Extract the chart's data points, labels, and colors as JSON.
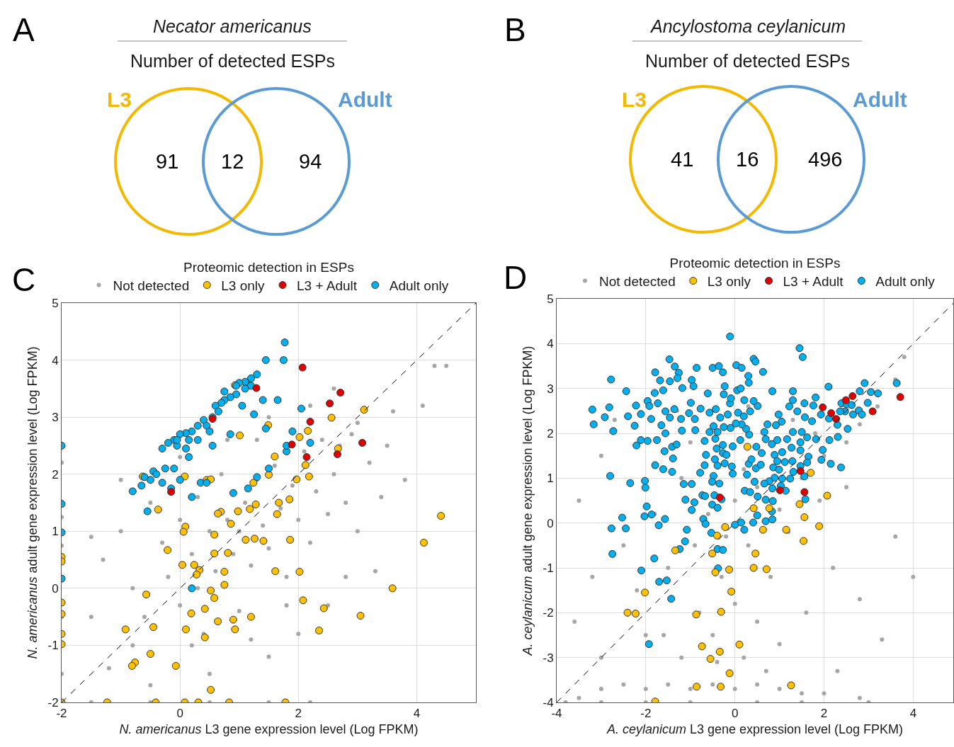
{
  "chart_data": [
    {
      "type": "other",
      "title": "Necator americanus",
      "subtitle": "Number of detected ESPs",
      "categories": [
        "L3",
        null,
        "Adult"
      ],
      "values": [
        91,
        12,
        94
      ],
      "data_labels": true,
      "colors": [
        "#f5b800",
        null,
        "#5b9bd5"
      ],
      "annotations": [
        "A"
      ]
    },
    {
      "type": "other",
      "title": "Ancylostoma ceylanicum",
      "subtitle": "Number of detected ESPs",
      "categories": [
        "L3",
        null,
        "Adult"
      ],
      "values": [
        41,
        16,
        496
      ],
      "data_labels": true,
      "colors": [
        "#f5b800",
        null,
        "#5b9bd5"
      ],
      "annotations": [
        "B"
      ]
    },
    {
      "type": "scatter",
      "legend_title": "Proteomic detection in ESPs",
      "xlabel": "N. americanus L3 gene expression level (Log FPKM)",
      "ylabel": "N. americanus adult gene expression level (Log FPKM)",
      "xlim": [
        -2,
        5
      ],
      "ylim": [
        -2,
        5
      ],
      "xticks": [
        -2,
        0,
        2,
        4
      ],
      "yticks": [
        -2,
        -1,
        0,
        1,
        2,
        3,
        4,
        5
      ],
      "grid": true,
      "legend": "top",
      "marker": "circle",
      "annotations": [
        "C"
      ],
      "series": [
        {
          "name": "Not detected",
          "color": "#a6a6a6",
          "x": [
            -1.3,
            -1.0,
            -0.8,
            -0.6,
            -0.5,
            -0.3,
            -0.2,
            0,
            0,
            0.2,
            0.3,
            0.4,
            0.5,
            0.6,
            0.7,
            0.8,
            0.9,
            1.0,
            1.0,
            1.1,
            1.2,
            1.3,
            1.4,
            1.5,
            1.6,
            1.7,
            1.8,
            1.9,
            2.0,
            2.1,
            2.2,
            2.3,
            2.4,
            2.5,
            2.6,
            2.8,
            2.9,
            3.0,
            3.2,
            3.4,
            3.6,
            3.8,
            4.1,
            4.3,
            4.5,
            2.8,
            3.3,
            2.0,
            1.5,
            0.5,
            -0.5,
            -1.2,
            -1.5,
            -1.5,
            -1.0,
            0.0,
            -0.8,
            0.2,
            1.2,
            2.5,
            1.5,
            0.8,
            2.2,
            -2,
            -2,
            -2,
            -2,
            -2,
            -1.5,
            -0.5,
            0.5,
            1.5,
            2.2,
            3.0,
            2.6,
            1.8,
            0.3,
            1.3,
            2.7,
            3.5
          ],
          "values": [
            0.5,
            1.0,
            0.0,
            -0.5,
            1.5,
            0.8,
            0.2,
            1.2,
            -0.3,
            0.6,
            1.6,
            -0.8,
            1.0,
            0.3,
            2.0,
            1.2,
            0.6,
            1.0,
            -0.4,
            1.5,
            0.4,
            1.9,
            1.1,
            0.7,
            2.15,
            1.4,
            0.2,
            1.8,
            1.2,
            2.4,
            0.8,
            1.7,
            2.6,
            1.3,
            2.0,
            1.5,
            2.7,
            1.0,
            2.2,
            1.6,
            3.1,
            1.9,
            3.2,
            3.9,
            3.9,
            0.2,
            0.3,
            -0.8,
            -1.2,
            -1.5,
            -1.7,
            -1.4,
            -0.5,
            0.9,
            1.9,
            2.3,
            -1.0,
            -1.0,
            -0.9,
            -0.3,
            3.0,
            2.6,
            3.2,
            -1.5,
            -0.5,
            0.75,
            1.25,
            2.2,
            -2,
            -2,
            -2,
            -2,
            -2,
            2.9,
            3.5,
            -0.3,
            0.0,
            2.6,
            2.5,
            2.5
          ]
        },
        {
          "name": "L3 only",
          "color": "#ffc000",
          "x": [
            0.93,
            3.11,
            2.56,
            1.49,
            1.01,
            2.02,
            2.16,
            2.67,
            1.6,
            2.12,
            1.5,
            -0.63,
            0.08,
            0.45,
            0.52,
            1.24,
            1.97,
            2.18,
            4.41,
            -0.37,
            1.85,
            1.67,
            1.28,
            1.18,
            0.98,
            0.69,
            0.64,
            1.64,
            0.86,
            0.09,
            0.06,
            0.58,
            1.11,
            1.26,
            1.41,
            1.86,
            4.12,
            -0.21,
            0.58,
            0.81,
            0.04,
            0.24,
            0.33,
            0.28,
            0.75,
            0.75,
            1.61,
            2.02,
            3.59,
            -0.57,
            0.52,
            0.58,
            2.08,
            0.42,
            0.19,
            2.43,
            3.05,
            1.2,
            0.64,
            0.9,
            -0.92,
            -0.45,
            0.1,
            0.93,
            2.35,
            0.42,
            -0.5,
            -0.76,
            -0.81,
            -0.07,
            0.52,
            -1.23,
            -0.41,
            0.08,
            0.31,
            0.83,
            1.78,
            -2,
            -2,
            -2,
            -2,
            -2,
            -2,
            -2
          ],
          "values": [
            3.56,
            3.13,
            2.99,
            2.86,
            2.68,
            2.65,
            2.76,
            2.45,
            2.31,
            2.16,
            1.99,
            1.96,
            1.96,
            1.9,
            1.91,
            1.85,
            1.91,
            1.96,
            1.27,
            1.38,
            1.56,
            1.5,
            1.47,
            1.39,
            1.35,
            1.34,
            1.31,
            1.3,
            1.13,
            1.08,
            0.99,
            0.94,
            0.85,
            0.87,
            0.83,
            0.85,
            0.8,
            0.67,
            0.61,
            0.62,
            0.41,
            0.41,
            0.32,
            0.24,
            0.29,
            0.06,
            0.3,
            0.29,
            0.0,
            -0.11,
            -0.04,
            -0.17,
            -0.21,
            -0.36,
            -0.44,
            -0.35,
            -0.48,
            -0.5,
            -0.58,
            -0.55,
            -0.72,
            -0.68,
            -0.72,
            -0.72,
            -0.74,
            -0.86,
            -1.15,
            -1.3,
            -1.36,
            -1.36,
            -1.78,
            -2,
            -2,
            -2,
            -2,
            -2,
            -2,
            -2,
            0.55,
            0.47,
            -0.25,
            -0.45,
            -0.8,
            -0.98
          ]
        },
        {
          "name": "L3 + Adult",
          "color": "#e00000",
          "x": [
            2.07,
            1.29,
            2.71,
            2.53,
            0.55,
            2.2,
            3.08,
            1.89,
            2.14,
            2.66,
            -0.15
          ],
          "values": [
            3.87,
            3.51,
            3.43,
            3.24,
            2.97,
            2.92,
            2.55,
            2.52,
            2.3,
            2.35,
            1.69
          ]
        },
        {
          "name": "Adult only",
          "color": "#00b0f0",
          "x": [
            1.77,
            1.45,
            1.75,
            1.15,
            1.3,
            1.2,
            1.1,
            1.0,
            1.2,
            0.95,
            0.85,
            0.75,
            0.7,
            0.6,
            0.65,
            0.55,
            0.4,
            0.45,
            0.3,
            0.2,
            0.1,
            0.0,
            0.15,
            -0.1,
            -0.2,
            -0.3,
            -0.05,
            0.1,
            0.15,
            -0.1,
            -0.25,
            -0.45,
            -0.5,
            -0.6,
            -0.65,
            -0.8,
            -0.15,
            -0.3,
            0.0,
            0.35,
            0.45,
            -0.55,
            0.2,
            0.9,
            1.15,
            1.3,
            1.5,
            1.8,
            1.9,
            1.45,
            1.25,
            1.4,
            1.65,
            2.05,
            1.8,
            2.2,
            0.2,
            -2,
            -2,
            -2,
            -2,
            0.55,
            0.85,
            1.05,
            0.95,
            1.1,
            0.5,
            0.75,
            0.3,
            -0.4,
            -0.05
          ],
          "values": [
            4.31,
            4.0,
            4.0,
            3.6,
            3.75,
            3.68,
            3.62,
            3.6,
            3.55,
            3.4,
            3.35,
            3.3,
            3.25,
            3.2,
            3.1,
            3.0,
            2.95,
            2.85,
            2.85,
            2.75,
            2.72,
            2.7,
            2.6,
            2.6,
            2.55,
            2.45,
            2.5,
            2.45,
            2.3,
            2.1,
            2.1,
            2.05,
            1.9,
            1.95,
            1.8,
            1.7,
            1.75,
            1.85,
            1.9,
            1.85,
            1.85,
            1.35,
            1.6,
            1.67,
            1.75,
            1.95,
            2.1,
            2.4,
            2.75,
            2.8,
            3.05,
            3.3,
            3.3,
            3.15,
            2.5,
            2.55,
            0.0,
            2.5,
            1.48,
            0.98,
            0.17,
            2.5,
            2.7,
            3.2,
            3.55,
            3.5,
            2.75,
            3.45,
            2.6,
            2.0,
            2.6
          ]
        },
        {
          "type": "line",
          "color": "#000000",
          "line_style": "dashed",
          "marker": "none",
          "x": [
            -2,
            5
          ],
          "values": [
            -2,
            5
          ]
        }
      ]
    },
    {
      "type": "scatter",
      "legend_title": "Proteomic detection in ESPs",
      "xlabel": "A. ceylanicum L3 gene expression level (Log FPKM)",
      "ylabel": "A. ceylanicum adult gene expression level (Log FPKM)",
      "xlim": [
        -4,
        4.9
      ],
      "ylim": [
        -4,
        5
      ],
      "xticks": [
        -4,
        -2,
        0,
        2,
        4
      ],
      "yticks": [
        -4,
        -3,
        -2,
        -1,
        0,
        1,
        2,
        3,
        4,
        5
      ],
      "grid": true,
      "legend": "top",
      "marker": "circle",
      "annotations": [
        "D"
      ],
      "series": [
        {
          "name": "Not detected",
          "color": "#a6a6a6",
          "x": [
            -3.5,
            -3,
            -2.5,
            -2,
            -1.5,
            -1,
            -0.5,
            0,
            0.5,
            1,
            1.5,
            2,
            2.8,
            -3.8,
            -3,
            -2,
            -1,
            0.5,
            1.5,
            3,
            -1.2,
            -0.5,
            0.2,
            -0.8,
            0,
            0.5,
            -1.6,
            -2.2,
            -1.5,
            -0.9,
            -0.3,
            0.3,
            0.8,
            1.2,
            1.6,
            2.2,
            2.8,
            3.3,
            0,
            0.5,
            1.0,
            1.5,
            2.0,
            2.5,
            2.8,
            3.2,
            3.6,
            4.0,
            3.6,
            -1.8,
            -2.5,
            -3.2,
            -3.5,
            -3.0,
            -2.7,
            -1.2,
            -0.6,
            0.2,
            0.8,
            1.3,
            1.8,
            -1.0,
            -2.0,
            -3.0,
            1.0,
            2.3,
            0.7,
            -0.4,
            1.9,
            2.5,
            -1.3,
            -0.2,
            3.8,
            -3.6,
            0.3
          ],
          "values": [
            -3.9,
            -3.7,
            -3.6,
            -3.7,
            -3.6,
            -3.7,
            -3.6,
            -3.7,
            -3.6,
            -3.7,
            -3.8,
            -3.8,
            -3.9,
            -4,
            -4,
            -4,
            -4,
            -4,
            -4,
            -4,
            -3,
            -2.5,
            -3,
            -2,
            -1.8,
            -2.2,
            -2.5,
            -1.5,
            -1,
            -0.5,
            -1.2,
            -0.5,
            -1.2,
            -0.2,
            -2.0,
            -1.0,
            -1.7,
            -2.6,
            0.5,
            0.8,
            0.3,
            1.0,
            1.5,
            1.8,
            2.2,
            2.6,
            3.2,
            -1.2,
            -0.3,
            0.2,
            -0.5,
            -1.2,
            0.5,
            1.5,
            2.3,
            1.0,
            0.2,
            1.2,
            1.8,
            2.3,
            2.0,
            1.8,
            -2.5,
            -3.0,
            -2.7,
            -3.3,
            -3.3,
            -3.1,
            0.5,
            0.8,
            2.5,
            -0.3,
            3.7,
            -2.2,
            2.6
          ]
        },
        {
          "name": "L3 only",
          "color": "#ffc000",
          "x": [
            0.28,
            1.7,
            2.07,
            1.45,
            1.56,
            1.89,
            1.54,
            1.15,
            0.63,
            0.42,
            0.77,
            -0.22,
            -0.4,
            -0.51,
            -1.34,
            0.46,
            0.42,
            0.71,
            -0.13,
            -0.44,
            -0.08,
            -2.02,
            -2.41,
            -2.23,
            -0.87,
            -0.31,
            -0.74,
            0.1,
            -0.34,
            -0.55,
            -0.12,
            -0.86,
            -0.32,
            1.26,
            -1.79
          ],
          "values": [
            1.7,
            1.12,
            0.61,
            0.42,
            0.13,
            -0.07,
            -0.4,
            -0.15,
            -0.15,
            0.33,
            0.33,
            -0.09,
            -0.28,
            -0.68,
            -0.61,
            -0.68,
            -1.0,
            -1.03,
            -1.04,
            -1.1,
            -1.53,
            -1.55,
            -2.0,
            -2.02,
            -2.04,
            -1.98,
            -2.75,
            -2.71,
            -2.87,
            -3.03,
            -3.35,
            -3.65,
            -3.65,
            -3.62,
            -3.98
          ]
        },
        {
          "name": "L3 + Adult",
          "color": "#e00000",
          "x": [
            1.97,
            2.16,
            2.49,
            2.64,
            3.09,
            3.71,
            1.47,
            1.01,
            1.56,
            -0.34,
            2.27
          ],
          "values": [
            2.58,
            2.45,
            2.74,
            2.83,
            2.49,
            2.81,
            1.16,
            0.73,
            0.69,
            0.57,
            2.32
          ]
        },
        {
          "name": "Adult only",
          "color": "#00b0f0",
          "x": [
            -0.11,
            1.45,
            1.52,
            -2.78,
            -1.47,
            -1.35,
            -1.79,
            -1.26,
            -0.86,
            -0.5,
            -0.36,
            -0.27,
            0.03,
            0.15,
            0.42,
            0.46,
            0.63,
            0.3,
            0.31,
            -0.23,
            0.05,
            0.13,
            -0.97,
            -0.93,
            -1.29,
            -1.18,
            -1.46,
            -1.68,
            -1.61,
            -1.8,
            -2.44,
            -3.2,
            -3.17,
            -2.92,
            -2.82,
            -2.73,
            -2.4,
            -2.22,
            -2.11,
            -2.25,
            -1.96,
            -1.92,
            -1.73,
            -1.56,
            -1.88,
            -1.65,
            -1.46,
            -1.36,
            -1.21,
            -0.99,
            -0.77,
            -0.57,
            -1.03,
            -0.9,
            -0.89,
            -1.19,
            -1.56,
            -2.11,
            -1.96,
            -1.75,
            -2.21,
            -1.41,
            -1.31,
            -1.58,
            -1.39,
            -1.79,
            -1.61,
            -1.41,
            -2.8,
            -2.35,
            -2.02,
            -2.01,
            -1.98,
            -2.53,
            -2.77,
            -2.45,
            -2.03,
            -1.87,
            -1.57,
            -1.71,
            -2.75,
            -1.81,
            -2.1,
            -1.7,
            -1.53,
            -1.43,
            -1.93,
            -1.24,
            -1.12,
            -1.08,
            -1.11,
            -0.91,
            -0.71,
            -0.66,
            -0.53,
            -0.39,
            -0.27,
            -0.38,
            -0.73,
            -0.67,
            -0.97,
            -1.15,
            -0.97,
            -0.68,
            -0.78,
            -0.48,
            -0.51,
            -0.35,
            -0.46,
            -0.51,
            -0.3,
            -0.39,
            0.0,
            0.14,
            0.21,
            0.41,
            0.69,
            0.84,
            0.5,
            0.69,
            0.85,
            0.83,
            0.22,
            0.34,
            0.44,
            0.51,
            0.27,
            0.31,
            0.47,
            0.37,
            -0.05,
            -0.07,
            -0.23,
            -0.39,
            -0.45,
            -0.27,
            -0.41,
            -0.27,
            -0.44,
            -0.57,
            -0.68,
            -0.65,
            -0.19,
            -0.05,
            0.12,
            0.32,
            0.25,
            0.15,
            0.02,
            -0.1,
            -0.25,
            -0.39,
            -0.48,
            -0.33,
            -0.16,
            0.07,
            0.2,
            0.34,
            0.51,
            0.42,
            0.21,
            -0.11,
            -0.43,
            -0.61,
            -0.25,
            -0.09,
            0.84,
            1.3,
            1.3,
            1.81,
            2.1,
            1.56,
            1.76,
            2.91,
            3.63,
            2.8,
            3.05,
            3.21,
            2.98,
            2.78,
            2.85,
            2.65,
            2.39,
            2.51,
            2.62,
            2.47,
            2.36,
            1.93,
            2.11,
            2.3,
            2.53,
            2.31,
            2.12,
            1.97,
            1.94,
            2.15,
            2.38,
            1.82,
            1.73,
            1.57,
            1.4,
            1.22,
            0.98,
            1.05,
            0.92,
            0.73,
            0.66,
            0.69,
            0.83,
            0.95,
            1.17,
            1.3,
            1.5,
            1.62,
            1.47,
            1.27,
            1.06,
            0.89,
            0.95,
            0.86,
            0.99,
            1.12,
            1.29,
            1.47,
            1.65,
            1.62,
            1.47,
            1.31,
            1.24,
            1.06,
            0.89,
            0.77,
            0.66,
            0.84,
            1.03,
            1.14,
            1.56,
            1.58,
            0.6,
            0.48,
            0.58
          ],
          "values": [
            4.16,
            3.9,
            3.7,
            3.2,
            3.65,
            3.49,
            3.36,
            3.35,
            3.46,
            3.46,
            3.5,
            3.36,
            3.52,
            3.46,
            3.66,
            3.6,
            3.37,
            3.28,
            3.13,
            3.05,
            2.96,
            3.0,
            3.19,
            3.05,
            3.23,
            3.01,
            3.16,
            3.18,
            2.96,
            2.9,
            2.94,
            2.53,
            2.2,
            2.36,
            2.58,
            2.05,
            2.38,
            2.62,
            2.43,
            2.17,
            2.72,
            2.61,
            2.67,
            2.49,
            2.32,
            2.18,
            2.35,
            2.54,
            2.32,
            2.68,
            2.55,
            2.46,
            2.45,
            2.32,
            2.07,
            2.06,
            2.0,
            1.85,
            1.83,
            1.85,
            1.73,
            1.7,
            1.75,
            1.6,
            1.44,
            1.29,
            1.2,
            1.14,
            1.05,
            0.89,
            0.94,
            0.79,
            0.37,
            0.12,
            -0.12,
            -0.12,
            0.15,
            0.19,
            0.09,
            -0.05,
            -0.69,
            -0.79,
            -1.06,
            -1.31,
            -1.28,
            -1.69,
            -2.7,
            -0.58,
            -0.41,
            -0.15,
            0.52,
            0.46,
            0.09,
            -0.02,
            -0.22,
            -0.58,
            -0.6,
            -1.01,
            0.62,
            0.6,
            0.29,
            0.87,
            0.87,
            1.29,
            1.12,
            1.05,
            0.92,
            0.88,
            0.62,
            0.41,
            0.53,
            0.34,
            -0.04,
            0.01,
            -0.15,
            0.01,
            0.04,
            0.08,
            0.17,
            0.52,
            0.49,
            0.26,
            0.72,
            0.69,
            0.92,
            0.59,
            1.08,
            1.32,
            1.22,
            1.42,
            1.1,
            1.26,
            1.33,
            1.28,
            1.42,
            1.56,
            1.66,
            1.74,
            1.88,
            2.03,
            1.83,
            1.52,
            1.52,
            1.71,
            1.85,
            1.97,
            2.1,
            2.2,
            2.22,
            2.12,
            2.14,
            2.03,
            2.16,
            2.35,
            2.42,
            2.46,
            2.38,
            2.49,
            2.61,
            2.72,
            2.74,
            2.67,
            2.54,
            2.89,
            2.87,
            2.78,
            2.94,
            2.94,
            2.74,
            2.8,
            3.04,
            2.67,
            2.62,
            3.12,
            3.12,
            2.94,
            2.92,
            2.89,
            2.68,
            2.51,
            2.42,
            2.42,
            2.67,
            2.65,
            2.63,
            2.49,
            2.49,
            2.42,
            2.33,
            2.19,
            2.1,
            1.92,
            1.85,
            1.63,
            1.41,
            1.32,
            1.24,
            1.87,
            2.27,
            2.36,
            2.49,
            2.6,
            2.42,
            2.26,
            2.18,
            2.2,
            2.03,
            1.87,
            1.76,
            1.85,
            1.87,
            2.03,
            2.03,
            1.91,
            1.8,
            1.68,
            1.58,
            1.52,
            1.38,
            1.24,
            1.19,
            1.36,
            1.38,
            1.62,
            1.48,
            1.35,
            1.27,
            1.14,
            0.99,
            0.99,
            1.01,
            0.93,
            0.88,
            0.77,
            0.83,
            0.72,
            1.04,
            0.53,
            1.56,
            1.7,
            1.3
          ]
        },
        {
          "type": "line",
          "color": "#000000",
          "line_style": "dashed",
          "marker": "none",
          "x": [
            -4,
            4.9
          ],
          "values": [
            -4,
            4.9
          ]
        }
      ]
    }
  ]
}
